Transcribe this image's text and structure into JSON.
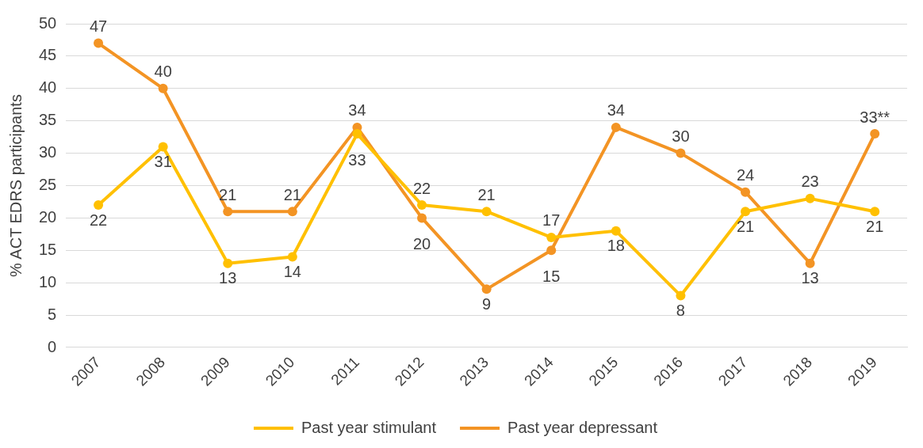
{
  "chart_data": {
    "type": "line",
    "ylabel": "% ACT EDRS participants",
    "categories": [
      "2007",
      "2008",
      "2009",
      "2010",
      "2011",
      "2012",
      "2013",
      "2014",
      "2015",
      "2016",
      "2017",
      "2018",
      "2019"
    ],
    "series": [
      {
        "name": "Past year stimulant",
        "color": "#ffc000",
        "values": [
          22,
          31,
          13,
          14,
          33,
          22,
          21,
          17,
          18,
          8,
          21,
          23,
          21
        ],
        "value_labels": [
          "22",
          "31",
          "13",
          "14",
          "33",
          "22",
          "21",
          "17",
          "18",
          "8",
          "21",
          "23",
          "21"
        ]
      },
      {
        "name": "Past year depressant",
        "color": "#f39424",
        "values": [
          47,
          40,
          21,
          21,
          34,
          20,
          9,
          15,
          34,
          30,
          24,
          13,
          33
        ],
        "value_labels": [
          "47",
          "40",
          "21",
          "21",
          "34",
          "20",
          "9",
          "15",
          "34",
          "30",
          "24",
          "13",
          "33**"
        ]
      }
    ],
    "ylim": [
      0,
      50
    ],
    "yticks": [
      0,
      5,
      10,
      15,
      20,
      25,
      30,
      35,
      40,
      45,
      50
    ],
    "grid": "y",
    "legend": "bottom",
    "marker": "circle",
    "line_style": "solid"
  }
}
